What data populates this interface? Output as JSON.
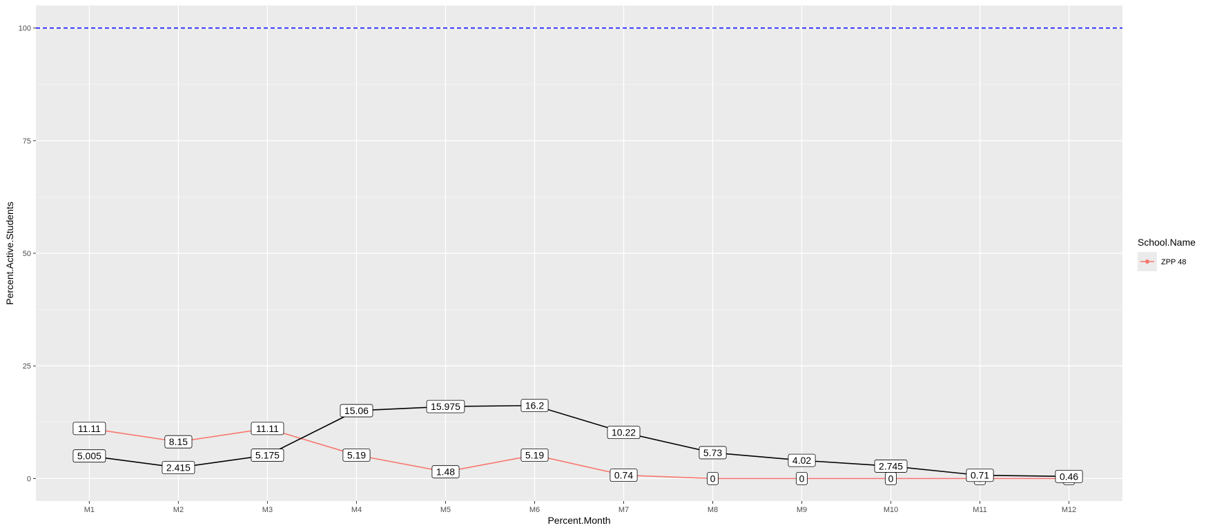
{
  "chart_data": {
    "type": "line",
    "xlabel": "Percent.Month",
    "ylabel": "Percent.Active.Students",
    "categories": [
      "M1",
      "M2",
      "M3",
      "M4",
      "M5",
      "M6",
      "M7",
      "M8",
      "M9",
      "M10",
      "M11",
      "M12"
    ],
    "ylim": [
      -5,
      105
    ],
    "yticks": [
      0,
      25,
      50,
      75,
      100
    ],
    "grid": true,
    "reference_line": {
      "y": 100,
      "color": "#0000ff",
      "style": "dashed"
    },
    "series": [
      {
        "name": "ZPP 48",
        "color": "#f8766d",
        "values": [
          11.11,
          8.15,
          11.11,
          5.19,
          1.48,
          5.19,
          0.74,
          0,
          0,
          0,
          0,
          0
        ],
        "labels": [
          "11.11",
          "8.15",
          "11.11",
          "5.19",
          "1.48",
          "5.19",
          "0.74",
          "0",
          "0",
          "0",
          "0",
          "0"
        ]
      },
      {
        "color": "#000000",
        "values": [
          5.005,
          2.415,
          5.175,
          15.06,
          15.975,
          16.2,
          10.22,
          5.73,
          4.02,
          2.745,
          0.71,
          0.46
        ],
        "labels": [
          "5.005",
          "2.415",
          "5.175",
          "15.06",
          "15.975",
          "16.2",
          "10.22",
          "5.73",
          "4.02",
          "2.745",
          "0.71",
          "0.46"
        ]
      }
    ],
    "legend": {
      "title": "School.Name",
      "entries": [
        "ZPP 48"
      ],
      "placement": "right"
    }
  }
}
